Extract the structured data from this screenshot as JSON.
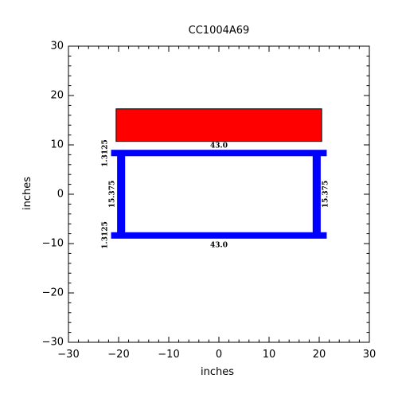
{
  "title": "CC1004A69",
  "xlabel": "inches",
  "ylabel": "inches",
  "chart_data": {
    "type": "diagram",
    "xlim": [
      -30,
      30
    ],
    "ylim": [
      -30,
      30
    ],
    "x_ticks": [
      -30,
      -20,
      -10,
      0,
      10,
      20,
      30
    ],
    "y_ticks": [
      -30,
      -20,
      -10,
      0,
      10,
      20,
      30
    ],
    "x_tick_labels": [
      "−30",
      "−20",
      "−10",
      "0",
      "10",
      "20",
      "30"
    ],
    "y_tick_labels": [
      "−30",
      "−20",
      "−10",
      "0",
      "10",
      "20",
      "30"
    ],
    "minor_tick_step": 2,
    "rectangles": [
      {
        "name": "concrete-slab",
        "x1": -20.5,
        "y1": 10.7,
        "x2": 20.5,
        "y2": 17.3,
        "fill": "#ff0000",
        "stroke": "#000000"
      },
      {
        "name": "top-flange",
        "x1": -21.5,
        "y1": 7.7,
        "x2": 21.5,
        "y2": 9.0,
        "fill": "#0000ff"
      },
      {
        "name": "bottom-flange",
        "x1": -21.5,
        "y1": -9.0,
        "x2": 21.5,
        "y2": -7.7,
        "fill": "#0000ff"
      },
      {
        "name": "left-web",
        "x1": -20.3,
        "y1": -8.5,
        "x2": -18.7,
        "y2": 8.5,
        "fill": "#0000ff"
      },
      {
        "name": "right-web",
        "x1": 18.7,
        "y1": -8.5,
        "x2": 20.3,
        "y2": 8.5,
        "fill": "#0000ff"
      }
    ],
    "dimension_labels": [
      {
        "name": "top-width-label",
        "text": "43.0",
        "x": 0,
        "y": 9.8,
        "rotate": 0
      },
      {
        "name": "bottom-width-label",
        "text": "43.0",
        "x": 0,
        "y": -10.3,
        "rotate": 0
      },
      {
        "name": "top-thickness-label",
        "text": "1.3125",
        "x": -22.7,
        "y": 8.3,
        "rotate": -90
      },
      {
        "name": "bottom-thickness-label",
        "text": "1.3125",
        "x": -22.7,
        "y": -8.3,
        "rotate": -90
      },
      {
        "name": "left-web-height-label",
        "text": "15.375",
        "x": -21.3,
        "y": 0,
        "rotate": -90
      },
      {
        "name": "right-web-height-label",
        "text": "15.375",
        "x": 21.3,
        "y": 0,
        "rotate": -90
      }
    ]
  }
}
